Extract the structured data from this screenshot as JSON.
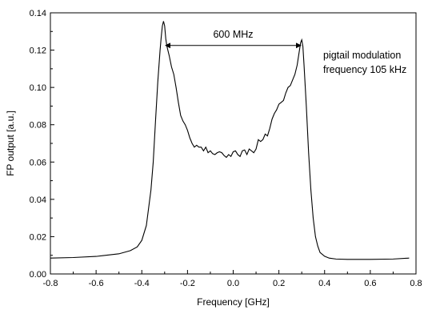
{
  "chart_data": {
    "type": "line",
    "xlabel": "Frequency [GHz]",
    "ylabel": "FP output [a.u.]",
    "xlim": [
      -0.8,
      0.8
    ],
    "ylim": [
      0.0,
      0.14
    ],
    "x_ticks": [
      "-0.8",
      "-0.6",
      "-0.4",
      "-0.2",
      "0.0",
      "0.2",
      "0.4",
      "0.6",
      "0.8"
    ],
    "y_ticks": [
      "0.00",
      "0.02",
      "0.04",
      "0.06",
      "0.08",
      "0.10",
      "0.12",
      "0.14"
    ],
    "grid": false,
    "series": [
      {
        "x": [
          -0.8,
          -0.7,
          -0.6,
          -0.5,
          -0.45,
          -0.42,
          -0.4,
          -0.38,
          -0.36,
          -0.35,
          -0.34,
          -0.33,
          -0.32,
          -0.315,
          -0.31,
          -0.305,
          -0.3,
          -0.295,
          -0.29,
          -0.28,
          -0.27,
          -0.26,
          -0.25,
          -0.24,
          -0.23,
          -0.22,
          -0.21,
          -0.2,
          -0.19,
          -0.18,
          -0.17,
          -0.16,
          -0.15,
          -0.14,
          -0.13,
          -0.12,
          -0.11,
          -0.1,
          -0.09,
          -0.08,
          -0.07,
          -0.06,
          -0.05,
          -0.04,
          -0.03,
          -0.02,
          -0.01,
          0.0,
          0.01,
          0.02,
          0.03,
          0.04,
          0.05,
          0.06,
          0.07,
          0.08,
          0.09,
          0.1,
          0.11,
          0.12,
          0.13,
          0.14,
          0.15,
          0.16,
          0.17,
          0.18,
          0.19,
          0.2,
          0.21,
          0.22,
          0.23,
          0.24,
          0.25,
          0.26,
          0.27,
          0.28,
          0.285,
          0.29,
          0.295,
          0.3,
          0.305,
          0.31,
          0.32,
          0.33,
          0.34,
          0.35,
          0.36,
          0.37,
          0.38,
          0.4,
          0.42,
          0.45,
          0.5,
          0.6,
          0.7,
          0.77
        ],
        "y": [
          0.0085,
          0.0088,
          0.0094,
          0.0108,
          0.0125,
          0.0145,
          0.018,
          0.026,
          0.045,
          0.06,
          0.082,
          0.103,
          0.12,
          0.127,
          0.133,
          0.1355,
          0.133,
          0.126,
          0.122,
          0.117,
          0.111,
          0.107,
          0.1,
          0.092,
          0.085,
          0.082,
          0.08,
          0.077,
          0.073,
          0.07,
          0.068,
          0.069,
          0.068,
          0.068,
          0.066,
          0.068,
          0.065,
          0.066,
          0.0645,
          0.064,
          0.065,
          0.0655,
          0.065,
          0.0635,
          0.0625,
          0.064,
          0.063,
          0.0655,
          0.066,
          0.064,
          0.063,
          0.066,
          0.0665,
          0.064,
          0.067,
          0.066,
          0.065,
          0.067,
          0.072,
          0.071,
          0.072,
          0.075,
          0.074,
          0.078,
          0.083,
          0.086,
          0.088,
          0.091,
          0.092,
          0.093,
          0.097,
          0.1,
          0.101,
          0.104,
          0.107,
          0.112,
          0.116,
          0.12,
          0.124,
          0.1255,
          0.122,
          0.112,
          0.09,
          0.065,
          0.045,
          0.03,
          0.02,
          0.015,
          0.0115,
          0.0095,
          0.0085,
          0.008,
          0.0078,
          0.0078,
          0.008,
          0.0085
        ]
      }
    ],
    "annotations": {
      "arrow_label": "600 MHz",
      "arrow_x": [
        -0.3,
        0.3
      ],
      "arrow_y": 0.1225,
      "note_line1": "pigtail modulation",
      "note_line2": "frequency 105 kHz"
    }
  }
}
